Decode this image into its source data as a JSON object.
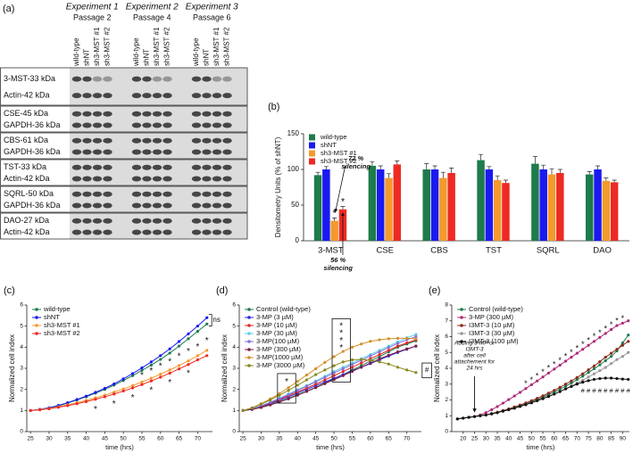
{
  "western_blot": {
    "panel_label": "(a)",
    "experiments": [
      {
        "title": "Experiment 1",
        "passage": "Passage 2"
      },
      {
        "title": "Experiment 2",
        "passage": "Passage 4"
      },
      {
        "title": "Experiment 3",
        "passage": "Passage 6"
      }
    ],
    "lanes": [
      "wild-type",
      "shNT",
      "sh3-MST #1",
      "sh3-MST #2"
    ],
    "groups": [
      [
        "3-MST-33 kDa",
        "Actin-42 kDa"
      ],
      [
        "CSE-45 kDa",
        "GAPDH-36 kDa"
      ],
      [
        "CBS-61 kDa",
        "GAPDH-36 kDa"
      ],
      [
        "TST-33 kDa",
        "Actin-42 kDa"
      ],
      [
        "SQRL-50 kDa",
        "GAPDH-36 kDa"
      ],
      [
        "DAO-27 kDa",
        "Actin-42 kDa"
      ]
    ]
  },
  "chart_data": [
    {
      "type": "bar",
      "panel_label": "(b)",
      "ylabel": "Densitometry Units (% of shNT)",
      "categories": [
        "3-MST",
        "CSE",
        "CBS",
        "TST",
        "SQRL",
        "DAO"
      ],
      "series": [
        {
          "name": "wild-type",
          "color": "#1e7b4c",
          "values": [
            92,
            105,
            100,
            113,
            108,
            93
          ],
          "errors": [
            4,
            6,
            8,
            8,
            10,
            4
          ]
        },
        {
          "name": "shNT",
          "color": "#1a1af0",
          "values": [
            100,
            100,
            100,
            100,
            100,
            100
          ],
          "errors": [
            4,
            5,
            5,
            4,
            6,
            5
          ]
        },
        {
          "name": "sh3-MST #1",
          "color": "#f39a2e",
          "values": [
            28,
            88,
            88,
            85,
            93,
            84
          ],
          "errors": [
            4,
            6,
            8,
            6,
            8,
            4
          ]
        },
        {
          "name": "sh3-MST #2",
          "color": "#ee2a24",
          "values": [
            44,
            107,
            95,
            81,
            95,
            82
          ],
          "errors": [
            4,
            5,
            7,
            4,
            5,
            3
          ]
        }
      ],
      "ylim": [
        0,
        150
      ],
      "yticks": [
        0,
        50,
        100,
        150
      ],
      "legend": "upper left",
      "annotations": [
        {
          "lines": [
            "72 %",
            "silencing"
          ]
        },
        {
          "lines": [
            "56 %",
            "silencing"
          ]
        },
        {
          "lines": [
            "*"
          ]
        },
        {
          "lines": [
            "*"
          ]
        }
      ]
    },
    {
      "type": "line",
      "panel_label": "(c)",
      "xlabel": "time (hrs)",
      "ylabel": "Normalized cell index",
      "x": [
        25,
        27.5,
        30,
        32.5,
        35,
        37.5,
        40,
        42.5,
        45,
        47.5,
        50,
        52.5,
        55,
        57.5,
        60,
        62.5,
        65,
        67.5,
        70,
        72.5
      ],
      "series": [
        {
          "name": "wild-type",
          "color": "#1e7b4c",
          "values": [
            1.0,
            1.05,
            1.12,
            1.22,
            1.35,
            1.5,
            1.65,
            1.82,
            2.0,
            2.2,
            2.42,
            2.65,
            2.9,
            3.15,
            3.42,
            3.72,
            4.05,
            4.4,
            4.75,
            5.1
          ]
        },
        {
          "name": "shNT",
          "color": "#1a1af0",
          "values": [
            1.0,
            1.05,
            1.13,
            1.24,
            1.37,
            1.52,
            1.68,
            1.86,
            2.05,
            2.26,
            2.5,
            2.75,
            3.02,
            3.3,
            3.6,
            3.92,
            4.27,
            4.63,
            5.0,
            5.4
          ]
        },
        {
          "name": "sh3-MST #1",
          "color": "#f39a2e",
          "values": [
            1.0,
            1.04,
            1.1,
            1.18,
            1.27,
            1.37,
            1.48,
            1.6,
            1.73,
            1.87,
            2.02,
            2.18,
            2.35,
            2.53,
            2.72,
            2.92,
            3.13,
            3.35,
            3.6,
            3.85
          ]
        },
        {
          "name": "sh3-MST #2",
          "color": "#ee2a24",
          "values": [
            1.0,
            1.03,
            1.08,
            1.15,
            1.23,
            1.32,
            1.42,
            1.53,
            1.65,
            1.78,
            1.92,
            2.07,
            2.23,
            2.4,
            2.58,
            2.77,
            2.97,
            3.18,
            3.4,
            3.6
          ]
        }
      ],
      "xlim": [
        24,
        74
      ],
      "xticks": [
        25,
        30,
        35,
        40,
        45,
        50,
        55,
        60,
        65,
        70
      ],
      "ylim": [
        0,
        6
      ],
      "yticks": [
        0,
        1,
        2,
        3,
        4,
        5,
        6
      ],
      "legend": "upper left",
      "annotations": [
        {
          "lines": [
            "ns"
          ]
        },
        {
          "lines": [
            "*"
          ]
        },
        {
          "lines": [
            "*"
          ]
        },
        {
          "lines": [
            "*"
          ]
        },
        {
          "lines": [
            "*"
          ]
        },
        {
          "lines": [
            "*"
          ]
        },
        {
          "lines": [
            "*"
          ]
        },
        {
          "lines": [
            "*"
          ]
        },
        {
          "lines": [
            "*"
          ]
        },
        {
          "lines": [
            "*"
          ]
        },
        {
          "lines": [
            "*"
          ]
        },
        {
          "lines": [
            "*"
          ]
        },
        {
          "lines": [
            "*"
          ]
        },
        {
          "lines": [
            "*"
          ]
        },
        {
          "lines": [
            "*"
          ]
        }
      ]
    },
    {
      "type": "line",
      "panel_label": "(d)",
      "xlabel": "time (hrs)",
      "ylabel": "Normalized cell index",
      "x": [
        25,
        27.5,
        30,
        32.5,
        35,
        37.5,
        40,
        42.5,
        45,
        47.5,
        50,
        52.5,
        55,
        57.5,
        60,
        62.5,
        65,
        67.5,
        70,
        72.5
      ],
      "series": [
        {
          "name": "Control (wild-type)",
          "color": "#1e7b4c",
          "values": [
            1.0,
            1.05,
            1.15,
            1.28,
            1.42,
            1.58,
            1.75,
            1.92,
            2.1,
            2.3,
            2.5,
            2.7,
            2.92,
            3.12,
            3.35,
            3.55,
            3.78,
            4.0,
            4.15,
            4.3
          ]
        },
        {
          "name": "3-MP (3 µM)",
          "color": "#2a2ae0",
          "values": [
            1.0,
            1.06,
            1.18,
            1.32,
            1.48,
            1.65,
            1.82,
            2.0,
            2.18,
            2.35,
            2.52,
            2.7,
            2.88,
            3.05,
            3.22,
            3.4,
            3.58,
            3.75,
            3.9,
            4.05
          ]
        },
        {
          "name": "3-MP (10 µM)",
          "color": "#e02828",
          "values": [
            1.0,
            1.07,
            1.2,
            1.35,
            1.52,
            1.7,
            1.88,
            2.06,
            2.25,
            2.45,
            2.65,
            2.85,
            3.05,
            3.25,
            3.45,
            3.65,
            3.85,
            4.05,
            4.2,
            4.35
          ]
        },
        {
          "name": "3-MP (30 µM)",
          "color": "#5ccfe6",
          "values": [
            1.0,
            1.08,
            1.22,
            1.4,
            1.58,
            1.78,
            1.98,
            2.18,
            2.4,
            2.62,
            2.85,
            3.05,
            3.25,
            3.45,
            3.65,
            3.85,
            4.05,
            4.25,
            4.45,
            4.6
          ]
        },
        {
          "name": "3-MP(100 µM)",
          "color": "#8a6fd8",
          "values": [
            1.0,
            1.08,
            1.22,
            1.38,
            1.56,
            1.75,
            1.95,
            2.15,
            2.36,
            2.57,
            2.78,
            2.98,
            3.18,
            3.38,
            3.58,
            3.78,
            3.98,
            4.18,
            4.35,
            4.5
          ]
        },
        {
          "name": "3-MP (300 µM)",
          "color": "#7a1f4a",
          "values": [
            1.0,
            1.05,
            1.14,
            1.26,
            1.4,
            1.55,
            1.72,
            1.9,
            2.08,
            2.27,
            2.46,
            2.65,
            2.85,
            3.05,
            3.25,
            3.45,
            3.62,
            3.78,
            3.92,
            4.05
          ]
        },
        {
          "name": "3-MP(1000 µM)",
          "color": "#d4902a",
          "values": [
            1.0,
            1.12,
            1.32,
            1.55,
            1.8,
            2.08,
            2.38,
            2.68,
            2.98,
            3.28,
            3.55,
            3.8,
            4.0,
            4.15,
            4.28,
            4.35,
            4.4,
            4.42,
            4.42,
            4.4
          ]
        },
        {
          "name": "3-MP (3000 µM)",
          "color": "#8a8a20",
          "values": [
            1.0,
            1.12,
            1.3,
            1.5,
            1.72,
            1.95,
            2.2,
            2.45,
            2.7,
            2.92,
            3.12,
            3.3,
            3.4,
            3.42,
            3.38,
            3.3,
            3.2,
            3.05,
            2.92,
            2.8
          ]
        }
      ],
      "xlim": [
        24,
        74
      ],
      "xticks": [
        25,
        30,
        35,
        40,
        45,
        50,
        55,
        60,
        65,
        70
      ],
      "ylim": [
        0,
        6
      ],
      "yticks": [
        0,
        1,
        2,
        3,
        4,
        5,
        6
      ],
      "legend": "upper left",
      "annotations": [
        {
          "lines": [
            "*"
          ]
        },
        {
          "lines": [
            "*"
          ]
        },
        {
          "lines": [
            "*"
          ]
        },
        {
          "lines": [
            "*"
          ]
        },
        {
          "lines": [
            "*"
          ]
        },
        {
          "lines": [
            "#"
          ]
        }
      ]
    },
    {
      "type": "line",
      "panel_label": "(e)",
      "xlabel": "time (hrs)",
      "ylabel": "Normalized cell index",
      "x": [
        17.5,
        20,
        22.5,
        25,
        27.5,
        30,
        32.5,
        35,
        37.5,
        40,
        42.5,
        45,
        47.5,
        50,
        52.5,
        55,
        57.5,
        60,
        62.5,
        65,
        67.5,
        70,
        72.5,
        75,
        77.5,
        80,
        82.5,
        85,
        87.5,
        90,
        92.5
      ],
      "series": [
        {
          "name": "Control (wild-type)",
          "color": "#1e7b4c",
          "values": [
            0.8,
            0.85,
            0.9,
            0.95,
            1.0,
            1.05,
            1.12,
            1.2,
            1.3,
            1.4,
            1.5,
            1.62,
            1.75,
            1.88,
            2.02,
            2.17,
            2.33,
            2.5,
            2.68,
            2.87,
            3.07,
            3.28,
            3.5,
            3.73,
            3.97,
            4.22,
            4.48,
            4.75,
            5.1,
            5.6,
            6.1
          ]
        },
        {
          "name": "3-MP (300 µM)",
          "color": "#b0287a",
          "values": [
            0.8,
            0.85,
            0.9,
            0.95,
            1.05,
            1.2,
            1.38,
            1.58,
            1.8,
            2.02,
            2.25,
            2.48,
            2.72,
            2.96,
            3.2,
            3.45,
            3.7,
            3.95,
            4.2,
            4.45,
            4.7,
            4.95,
            5.2,
            5.45,
            5.7,
            5.95,
            6.2,
            6.45,
            6.7,
            6.85,
            7.0
          ]
        },
        {
          "name": "I3MT-3 (10 µM)",
          "color": "#8b2a1a",
          "values": [
            0.8,
            0.85,
            0.9,
            0.95,
            1.0,
            1.06,
            1.14,
            1.23,
            1.33,
            1.44,
            1.56,
            1.68,
            1.81,
            1.95,
            2.1,
            2.26,
            2.43,
            2.61,
            2.8,
            3.0,
            3.2,
            3.42,
            3.65,
            3.9,
            4.15,
            4.42,
            4.7,
            4.95,
            5.2,
            5.45,
            5.7
          ]
        },
        {
          "name": "I3MT-3 (30 µM)",
          "color": "#999999",
          "values": [
            0.8,
            0.85,
            0.9,
            0.95,
            1.0,
            1.05,
            1.12,
            1.2,
            1.29,
            1.38,
            1.48,
            1.59,
            1.7,
            1.82,
            1.95,
            2.08,
            2.22,
            2.37,
            2.53,
            2.7,
            2.88,
            3.06,
            3.25,
            3.45,
            3.65,
            3.85,
            4.05,
            4.3,
            4.55,
            4.75,
            5.0
          ]
        },
        {
          "name": "I3MT-3 (100 µM)",
          "color": "#111111",
          "values": [
            0.8,
            0.85,
            0.9,
            0.95,
            1.0,
            1.05,
            1.12,
            1.2,
            1.29,
            1.38,
            1.48,
            1.59,
            1.7,
            1.82,
            1.95,
            2.08,
            2.22,
            2.37,
            2.53,
            2.7,
            2.85,
            3.0,
            3.12,
            3.22,
            3.3,
            3.35,
            3.38,
            3.38,
            3.35,
            3.32,
            3.3
          ]
        }
      ],
      "xlim": [
        15,
        93
      ],
      "xticks": [
        20,
        25,
        30,
        35,
        40,
        45,
        50,
        55,
        60,
        65,
        70,
        75,
        80,
        85,
        90
      ],
      "ylim": [
        0,
        8
      ],
      "yticks": [
        0,
        1,
        2,
        3,
        4,
        5,
        6,
        7,
        8
      ],
      "legend": "upper left",
      "annotations": [
        {
          "lines": [
            "Adding 3-MP or",
            "I3MT-3",
            "after cell",
            "attachement for",
            "24 hrs"
          ]
        },
        {
          "lines": [
            "*"
          ]
        },
        {
          "lines": [
            "*"
          ]
        },
        {
          "lines": [
            "*"
          ]
        },
        {
          "lines": [
            "*"
          ]
        },
        {
          "lines": [
            "*"
          ]
        },
        {
          "lines": [
            "*"
          ]
        },
        {
          "lines": [
            "*"
          ]
        },
        {
          "lines": [
            "*"
          ]
        },
        {
          "lines": [
            "*"
          ]
        },
        {
          "lines": [
            "*"
          ]
        },
        {
          "lines": [
            "*"
          ]
        },
        {
          "lines": [
            "*"
          ]
        },
        {
          "lines": [
            "*"
          ]
        },
        {
          "lines": [
            "*"
          ]
        },
        {
          "lines": [
            "*"
          ]
        },
        {
          "lines": [
            "*"
          ]
        },
        {
          "lines": [
            "*"
          ]
        },
        {
          "lines": [
            "*"
          ]
        },
        {
          "lines": [
            "#"
          ]
        },
        {
          "lines": [
            "#"
          ]
        },
        {
          "lines": [
            "#"
          ]
        },
        {
          "lines": [
            "#"
          ]
        },
        {
          "lines": [
            "#"
          ]
        },
        {
          "lines": [
            "#"
          ]
        },
        {
          "lines": [
            "#"
          ]
        },
        {
          "lines": [
            "#"
          ]
        },
        {
          "lines": [
            "#"
          ]
        }
      ]
    }
  ]
}
